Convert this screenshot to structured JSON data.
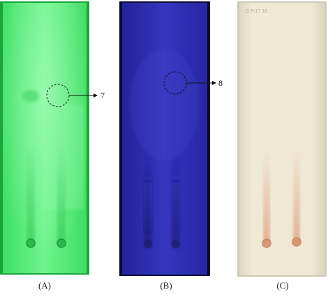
{
  "panels": [
    {
      "caption": "(A)",
      "callout": "7",
      "plate_color": "#57ef79"
    },
    {
      "caption": "(B)",
      "callout": "8",
      "plate_color": "#2f2fb5"
    },
    {
      "caption": "(C)",
      "plate_color": "#f1ead8"
    }
  ],
  "plate_c_label": "D Fr17 10"
}
